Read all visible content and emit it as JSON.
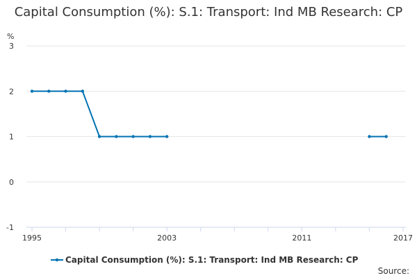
{
  "chart_data": {
    "type": "line",
    "title": "Capital Consumption (%): S.1: Transport: Ind MB Research: CP",
    "ylabel": "%",
    "xlabel": "",
    "ylim": [
      -1,
      3
    ],
    "xlim": [
      1995,
      2017
    ],
    "yticks": [
      -1,
      0,
      1,
      2,
      3
    ],
    "xticks": [
      1995,
      2003,
      2011,
      2017
    ],
    "grid": true,
    "legend_position": "bottom-center",
    "source": "Source:",
    "series": [
      {
        "name": "Capital Consumption (%): S.1: Transport: Ind MB Research: CP",
        "color": "#0072b2",
        "points": [
          {
            "x": 1995,
            "y": 2
          },
          {
            "x": 1996,
            "y": 2
          },
          {
            "x": 1997,
            "y": 2
          },
          {
            "x": 1998,
            "y": 2
          },
          {
            "x": 1999,
            "y": 1
          },
          {
            "x": 2000,
            "y": 1
          },
          {
            "x": 2001,
            "y": 1
          },
          {
            "x": 2002,
            "y": 1
          },
          {
            "x": 2003,
            "y": 1
          },
          {
            "x": 2015,
            "y": 1
          },
          {
            "x": 2016,
            "y": 1
          }
        ]
      }
    ]
  }
}
